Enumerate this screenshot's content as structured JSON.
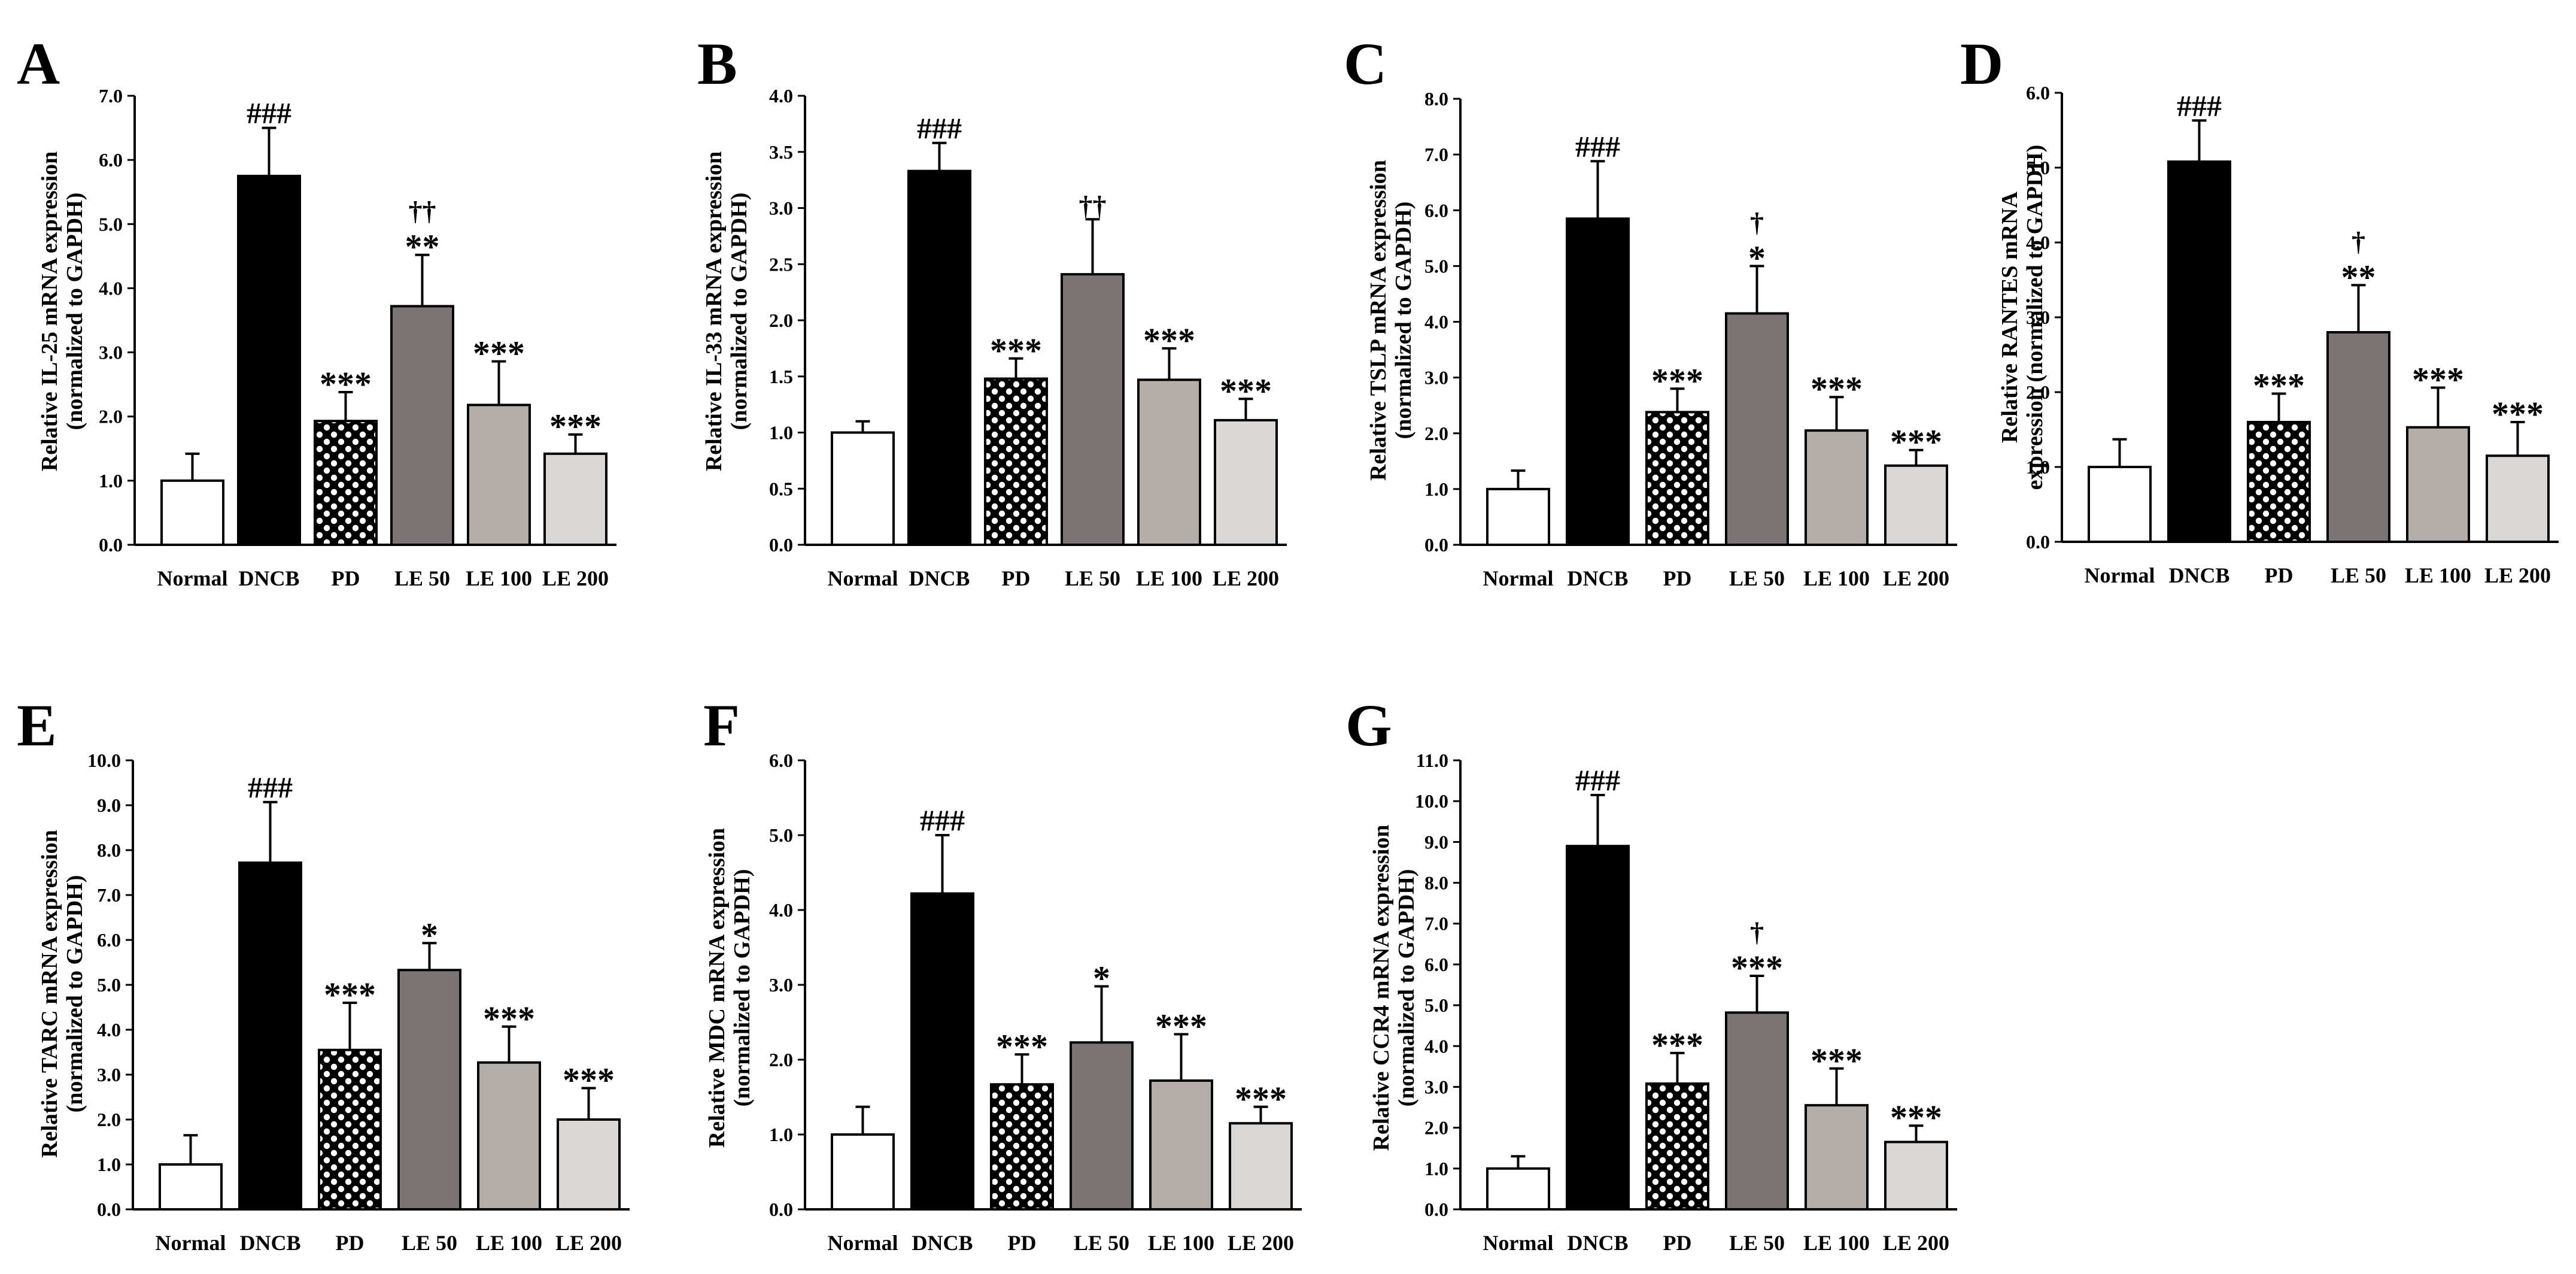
{
  "figure": {
    "categories": [
      "Normal",
      "DNCB",
      "PD",
      "LE 50",
      "LE 100",
      "LE 200"
    ],
    "bar_styles": {
      "Normal": {
        "fill": "#ffffff",
        "pattern": "none"
      },
      "DNCB": {
        "fill": "#000000",
        "pattern": "none"
      },
      "PD": {
        "fill": "#000000",
        "pattern": "dots-white"
      },
      "LE 50": {
        "fill": "#7a7474",
        "pattern": "none"
      },
      "LE 100": {
        "fill": "#b3aeaa",
        "pattern": "none"
      },
      "LE 200": {
        "fill": "#d9d6d6",
        "pattern": "none"
      }
    }
  },
  "chart_data": [
    {
      "type": "bar",
      "panel": "A",
      "ylabel": [
        "Relative  IL-25 mRNA expression",
        "(normalized to GAPDH)"
      ],
      "ylim": [
        0,
        7
      ],
      "ystep": 1,
      "ytick_labels": [
        "0.0",
        "1.0",
        "2.0",
        "3.0",
        "4.0",
        "5.0",
        "6.0",
        "7.0"
      ],
      "categories": [
        "Normal",
        "DNCB",
        "PD",
        "LE 50",
        "LE 100",
        "LE 200"
      ],
      "values": [
        1.0,
        5.75,
        1.93,
        3.72,
        2.18,
        1.42
      ],
      "errors": [
        0.42,
        0.75,
        0.45,
        0.8,
        0.68,
        0.3
      ],
      "annotations": [
        [],
        [
          "###"
        ],
        [
          "***"
        ],
        [
          "**",
          "††"
        ],
        [
          "***"
        ],
        [
          "***"
        ]
      ]
    },
    {
      "type": "bar",
      "panel": "B",
      "ylabel": [
        "Relative  IL-33 mRNA expression",
        "(normalized to GAPDH)"
      ],
      "ylim": [
        0,
        4
      ],
      "ystep": 0.5,
      "ytick_labels": [
        "0.0",
        "0.5",
        "1.0",
        "1.5",
        "2.0",
        "2.5",
        "3.0",
        "3.5",
        "4.0"
      ],
      "categories": [
        "Normal",
        "DNCB",
        "PD",
        "LE 50",
        "LE 100",
        "LE 200"
      ],
      "values": [
        1.0,
        3.33,
        1.48,
        2.41,
        1.47,
        1.11
      ],
      "errors": [
        0.1,
        0.25,
        0.18,
        0.49,
        0.28,
        0.19
      ],
      "annotations": [
        [],
        [
          "###"
        ],
        [
          "***"
        ],
        [
          "††"
        ],
        [
          "***"
        ],
        [
          "***"
        ]
      ]
    },
    {
      "type": "bar",
      "panel": "C",
      "ylabel": [
        "Relative TSLP mRNA expression",
        "(normalized to GAPDH)"
      ],
      "ylim": [
        0,
        8
      ],
      "ystep": 1,
      "ytick_labels": [
        "0.0",
        "1.0",
        "2.0",
        "3.0",
        "4.0",
        "5.0",
        "6.0",
        "7.0",
        "8.0"
      ],
      "categories": [
        "Normal",
        "DNCB",
        "PD",
        "LE 50",
        "LE 100",
        "LE 200"
      ],
      "values": [
        1.0,
        5.85,
        2.38,
        4.15,
        2.05,
        1.42
      ],
      "errors": [
        0.33,
        1.03,
        0.42,
        0.85,
        0.6,
        0.28
      ],
      "annotations": [
        [],
        [
          "###"
        ],
        [
          "***"
        ],
        [
          "*",
          "†"
        ],
        [
          "***"
        ],
        [
          "***"
        ]
      ]
    },
    {
      "type": "bar",
      "panel": "D",
      "ylabel": [
        "Relative  RANTES mRNA",
        "expression (normalized to GAPDH)"
      ],
      "ylim": [
        0,
        6
      ],
      "ystep": 1,
      "ytick_labels": [
        "0.0",
        "1.0",
        "2.0",
        "3.0",
        "4.0",
        "5.0",
        "6.0"
      ],
      "categories": [
        "Normal",
        "DNCB",
        "PD",
        "LE 50",
        "LE 100",
        "LE 200"
      ],
      "values": [
        1.0,
        5.08,
        1.6,
        2.8,
        1.53,
        1.15
      ],
      "errors": [
        0.37,
        0.55,
        0.38,
        0.63,
        0.53,
        0.45
      ],
      "annotations": [
        [],
        [
          "###"
        ],
        [
          "***"
        ],
        [
          "**",
          "†"
        ],
        [
          "***"
        ],
        [
          "***"
        ]
      ]
    },
    {
      "type": "bar",
      "panel": "E",
      "ylabel": [
        "Relative  TARC mRNA expression",
        "(normalized to GAPDH)"
      ],
      "ylim": [
        0,
        10
      ],
      "ystep": 1,
      "ytick_labels": [
        "0.0",
        "1.0",
        "2.0",
        "3.0",
        "4.0",
        "5.0",
        "6.0",
        "7.0",
        "8.0",
        "9.0",
        "10.0"
      ],
      "categories": [
        "Normal",
        "DNCB",
        "PD",
        "LE 50",
        "LE 100",
        "LE 200"
      ],
      "values": [
        1.0,
        7.72,
        3.55,
        5.33,
        3.27,
        2.0
      ],
      "errors": [
        0.65,
        1.35,
        1.05,
        0.6,
        0.8,
        0.7
      ],
      "annotations": [
        [],
        [
          "###"
        ],
        [
          "***"
        ],
        [
          "*"
        ],
        [
          "***"
        ],
        [
          "***"
        ]
      ]
    },
    {
      "type": "bar",
      "panel": "F",
      "ylabel": [
        "Relative  MDC mRNA expression",
        "(normalized to GAPDH)"
      ],
      "ylim": [
        0,
        6
      ],
      "ystep": 1,
      "ytick_labels": [
        "0.0",
        "1.0",
        "2.0",
        "3.0",
        "4.0",
        "5.0",
        "6.0"
      ],
      "categories": [
        "Normal",
        "DNCB",
        "PD",
        "LE 50",
        "LE 100",
        "LE 200"
      ],
      "values": [
        1.0,
        4.22,
        1.67,
        2.23,
        1.72,
        1.15
      ],
      "errors": [
        0.37,
        0.78,
        0.4,
        0.75,
        0.62,
        0.22
      ],
      "annotations": [
        [],
        [
          "###"
        ],
        [
          "***"
        ],
        [
          "*"
        ],
        [
          "***"
        ],
        [
          "***"
        ]
      ]
    },
    {
      "type": "bar",
      "panel": "G",
      "ylabel": [
        "Relative  CCR4 mRNA expression",
        "(normalized to GAPDH)"
      ],
      "ylim": [
        0,
        11
      ],
      "ystep": 1,
      "ytick_labels": [
        "0.0",
        "1.0",
        "2.0",
        "3.0",
        "4.0",
        "5.0",
        "6.0",
        "7.0",
        "8.0",
        "9.0",
        "10.0",
        "11.0"
      ],
      "categories": [
        "Normal",
        "DNCB",
        "PD",
        "LE 50",
        "LE 100",
        "LE 200"
      ],
      "values": [
        1.0,
        8.9,
        3.08,
        4.82,
        2.55,
        1.65
      ],
      "errors": [
        0.3,
        1.25,
        0.75,
        0.9,
        0.9,
        0.4
      ],
      "annotations": [
        [],
        [
          "###"
        ],
        [
          "***"
        ],
        [
          "***",
          "†"
        ],
        [
          "***"
        ],
        [
          "***"
        ]
      ]
    }
  ]
}
